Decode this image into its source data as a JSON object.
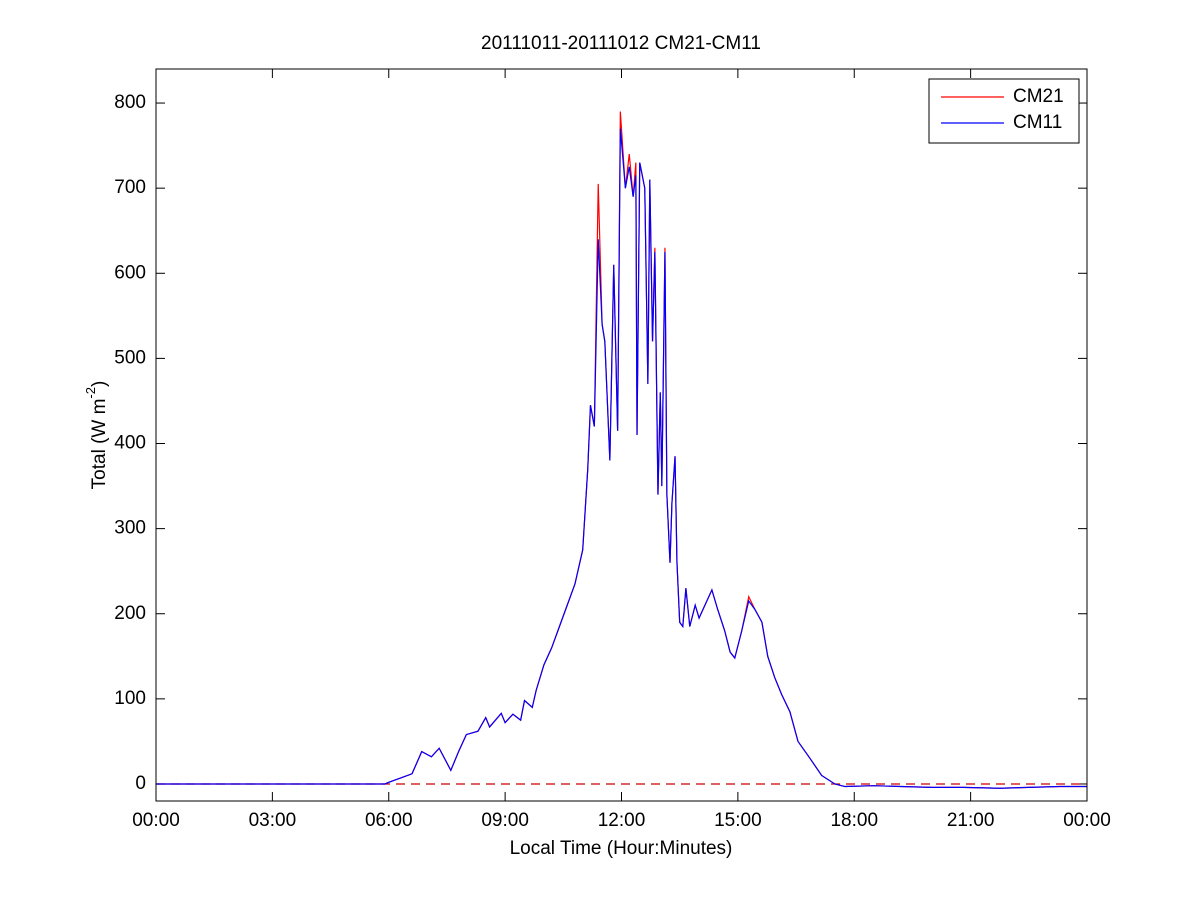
{
  "chart_data": {
    "type": "line",
    "title": "20111011-20111012 CM21-CM11",
    "xlabel": "Local Time (Hour:Minutes)",
    "ylabel": [
      "Total (W m",
      "-2",
      ")"
    ],
    "x": [
      0,
      1,
      2,
      3,
      4,
      5,
      5.9,
      6.0,
      6.3,
      6.6,
      6.85,
      7.1,
      7.3,
      7.6,
      7.8,
      8.0,
      8.3,
      8.5,
      8.6,
      8.9,
      9.0,
      9.2,
      9.4,
      9.5,
      9.7,
      9.8,
      10.0,
      10.2,
      10.4,
      10.6,
      10.8,
      11.0,
      11.13,
      11.2,
      11.3,
      11.4,
      11.5,
      11.57,
      11.7,
      11.8,
      11.9,
      11.97,
      12.1,
      12.2,
      12.3,
      12.37,
      12.4,
      12.47,
      12.6,
      12.68,
      12.73,
      12.8,
      12.86,
      12.94,
      13.0,
      13.04,
      13.12,
      13.17,
      13.25,
      13.3,
      13.38,
      13.43,
      13.5,
      13.58,
      13.66,
      13.76,
      13.9,
      14.0,
      14.15,
      14.33,
      14.48,
      14.66,
      14.8,
      14.92,
      15.1,
      15.28,
      15.44,
      15.62,
      15.77,
      15.95,
      16.13,
      16.34,
      16.55,
      16.86,
      17.16,
      17.5,
      17.76,
      18.5,
      19.2,
      20,
      20.8,
      21.75,
      22.5,
      23.3,
      24
    ],
    "series": [
      {
        "name": "CM21",
        "color": "#ff0000",
        "values": [
          0,
          0,
          0,
          0,
          0,
          0,
          0,
          2,
          7,
          12,
          38,
          32,
          42,
          16,
          38,
          58,
          62,
          78,
          67,
          83,
          72,
          82,
          75,
          98,
          90,
          110,
          140,
          160,
          185,
          210,
          235,
          275,
          370,
          445,
          420,
          705,
          540,
          520,
          380,
          610,
          415,
          790,
          700,
          740,
          690,
          730,
          410,
          730,
          700,
          470,
          710,
          520,
          630,
          340,
          460,
          350,
          630,
          340,
          260,
          330,
          385,
          260,
          190,
          185,
          230,
          185,
          210,
          195,
          210,
          228,
          205,
          180,
          155,
          148,
          180,
          220,
          205,
          190,
          150,
          125,
          105,
          85,
          50,
          30,
          10,
          0,
          -3,
          -2,
          -3,
          -4,
          -4,
          -5,
          -4,
          -3,
          -3
        ]
      },
      {
        "name": "CM11",
        "color": "#0000ff",
        "values": [
          0,
          0,
          0,
          0,
          0,
          0,
          0,
          2,
          7,
          12,
          38,
          32,
          42,
          16,
          38,
          58,
          62,
          78,
          67,
          83,
          72,
          82,
          75,
          98,
          90,
          110,
          140,
          160,
          185,
          210,
          235,
          275,
          370,
          445,
          420,
          640,
          540,
          520,
          380,
          610,
          415,
          770,
          700,
          725,
          690,
          715,
          410,
          730,
          700,
          470,
          710,
          520,
          625,
          340,
          460,
          350,
          625,
          340,
          260,
          330,
          385,
          260,
          190,
          185,
          230,
          185,
          210,
          195,
          210,
          228,
          205,
          180,
          155,
          148,
          180,
          215,
          205,
          190,
          150,
          125,
          105,
          85,
          50,
          30,
          10,
          0,
          -3,
          -2,
          -3,
          -4,
          -4,
          -5,
          -4,
          -3,
          -3
        ]
      }
    ],
    "reference_line": {
      "y": 0,
      "color": "#cc0000",
      "style": "dashed"
    },
    "xlim": [
      0,
      24
    ],
    "xticks": [
      {
        "value": 0,
        "label": "00:00"
      },
      {
        "value": 3,
        "label": "03:00"
      },
      {
        "value": 6,
        "label": "06:00"
      },
      {
        "value": 9,
        "label": "09:00"
      },
      {
        "value": 12,
        "label": "12:00"
      },
      {
        "value": 15,
        "label": "15:00"
      },
      {
        "value": 18,
        "label": "18:00"
      },
      {
        "value": 21,
        "label": "21:00"
      },
      {
        "value": 24,
        "label": "00:00"
      }
    ],
    "ylim": [
      -20,
      840
    ],
    "yticks": [
      0,
      100,
      200,
      300,
      400,
      500,
      600,
      700,
      800
    ],
    "grid": false,
    "legend": "upper-right"
  }
}
